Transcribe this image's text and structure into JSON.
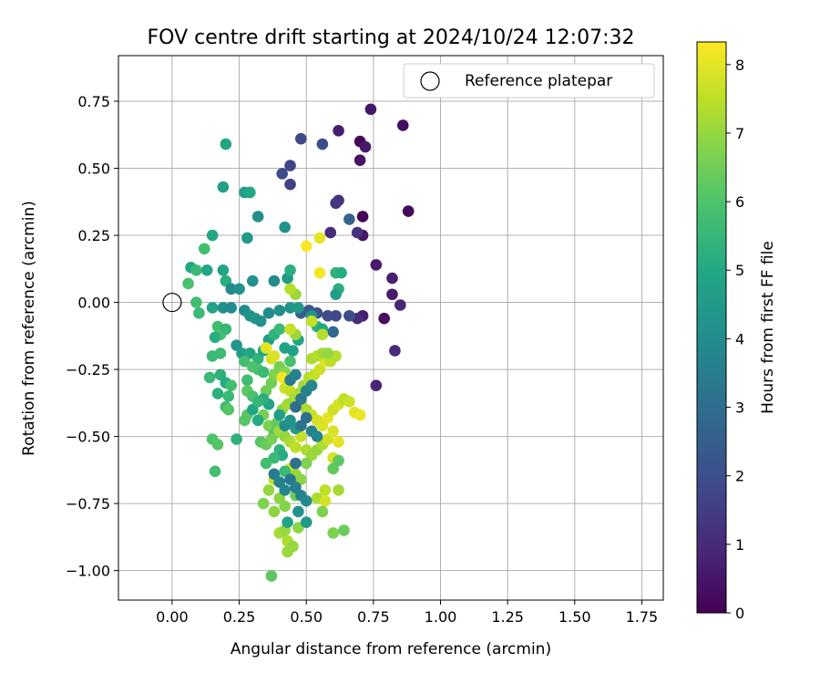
{
  "chart_data": {
    "type": "scatter",
    "title": "FOV centre drift starting at 2024/10/24 12:07:32",
    "xlabel": "Angular distance from reference (arcmin)",
    "ylabel": "Rotation from reference (arcmin)",
    "colorbar_label": "Hours from first FF file",
    "xlim": [
      -0.2,
      1.83
    ],
    "ylim": [
      -1.11,
      0.92
    ],
    "x_ticks": [
      "0.00",
      "0.25",
      "0.50",
      "0.75",
      "1.00",
      "1.25",
      "1.50",
      "1.75"
    ],
    "x_tick_values": [
      0,
      0.25,
      0.5,
      0.75,
      1.0,
      1.25,
      1.5,
      1.75
    ],
    "y_ticks": [
      "0.75",
      "0.50",
      "0.25",
      "0.00",
      "−0.25",
      "−0.50",
      "−0.75",
      "−1.00"
    ],
    "y_tick_values": [
      0.75,
      0.5,
      0.25,
      0,
      -0.25,
      -0.5,
      -0.75,
      -1.0
    ],
    "colorbar_ticks": [
      "0",
      "1",
      "2",
      "3",
      "4",
      "5",
      "6",
      "7",
      "8"
    ],
    "colorbar_tick_values": [
      0,
      1,
      2,
      3,
      4,
      5,
      6,
      7,
      8
    ],
    "colorbar_range": [
      0,
      8.33
    ],
    "colormap": "viridis",
    "grid": true,
    "legend": {
      "position": "top-right",
      "label": "Reference platepar"
    },
    "reference_point": {
      "x": 0,
      "y": 0
    },
    "points": [
      [
        0.74,
        0.72,
        0.5
      ],
      [
        0.86,
        0.66,
        0.3
      ],
      [
        0.62,
        0.64,
        0.7
      ],
      [
        0.48,
        0.61,
        1.8
      ],
      [
        0.56,
        0.59,
        1.9
      ],
      [
        0.7,
        0.6,
        0.2
      ],
      [
        0.72,
        0.58,
        0.6
      ],
      [
        0.7,
        0.53,
        0.4
      ],
      [
        0.44,
        0.51,
        1.7
      ],
      [
        0.41,
        0.48,
        1.9
      ],
      [
        0.44,
        0.44,
        1.6
      ],
      [
        0.62,
        0.38,
        1.2
      ],
      [
        0.61,
        0.37,
        1.3
      ],
      [
        0.88,
        0.34,
        0.2
      ],
      [
        0.71,
        0.32,
        0.1
      ],
      [
        0.66,
        0.31,
        2.6
      ],
      [
        0.71,
        0.25,
        0.5
      ],
      [
        0.59,
        0.26,
        1.0
      ],
      [
        0.69,
        0.26,
        1.2
      ],
      [
        0.76,
        0.14,
        0.6
      ],
      [
        0.82,
        0.09,
        0.7
      ],
      [
        0.82,
        0.03,
        0.6
      ],
      [
        0.85,
        -0.01,
        0.9
      ],
      [
        0.71,
        -0.05,
        0.7
      ],
      [
        0.79,
        -0.06,
        0.3
      ],
      [
        0.69,
        -0.06,
        1.1
      ],
      [
        0.66,
        -0.05,
        2.0
      ],
      [
        0.61,
        -0.05,
        1.8
      ],
      [
        0.58,
        -0.05,
        1.9
      ],
      [
        0.54,
        -0.04,
        2.1
      ],
      [
        0.51,
        -0.03,
        2.3
      ],
      [
        0.48,
        -0.04,
        2.5
      ],
      [
        0.6,
        -0.11,
        2.8
      ],
      [
        0.83,
        -0.18,
        1.0
      ],
      [
        0.76,
        -0.31,
        0.9
      ],
      [
        0.2,
        0.59,
        4.9
      ],
      [
        0.19,
        0.43,
        4.7
      ],
      [
        0.27,
        0.41,
        4.6
      ],
      [
        0.29,
        0.41,
        5.0
      ],
      [
        0.32,
        0.32,
        4.1
      ],
      [
        0.42,
        0.28,
        4.2
      ],
      [
        0.15,
        0.25,
        5.0
      ],
      [
        0.28,
        0.24,
        4.5
      ],
      [
        0.12,
        0.2,
        5.8
      ],
      [
        0.07,
        0.13,
        4.9
      ],
      [
        0.09,
        0.12,
        5.6
      ],
      [
        0.13,
        0.12,
        4.9
      ],
      [
        0.19,
        0.12,
        4.9
      ],
      [
        0.2,
        0.08,
        5.2
      ],
      [
        0.06,
        0.07,
        5.9
      ],
      [
        0.22,
        0.05,
        3.9
      ],
      [
        0.25,
        0.05,
        4.2
      ],
      [
        0.3,
        0.08,
        4.2
      ],
      [
        0.38,
        0.08,
        4.0
      ],
      [
        0.43,
        0.09,
        4.5
      ],
      [
        0.44,
        0.12,
        5.2
      ],
      [
        0.61,
        0.11,
        5.4
      ],
      [
        0.63,
        0.11,
        5.1
      ],
      [
        0.62,
        0.05,
        5.2
      ],
      [
        0.61,
        0.03,
        4.7
      ],
      [
        0.09,
        0.0,
        5.8
      ],
      [
        0.1,
        -0.04,
        5.6
      ],
      [
        0.15,
        -0.02,
        4.8
      ],
      [
        0.19,
        -0.02,
        4.1
      ],
      [
        0.22,
        -0.02,
        4.0
      ],
      [
        0.27,
        -0.03,
        4.0
      ],
      [
        0.29,
        -0.05,
        4.2
      ],
      [
        0.31,
        -0.06,
        4.4
      ],
      [
        0.33,
        -0.07,
        4.1
      ],
      [
        0.36,
        -0.04,
        4.0
      ],
      [
        0.4,
        -0.03,
        4.1
      ],
      [
        0.44,
        -0.02,
        4.3
      ],
      [
        0.47,
        -0.02,
        4.5
      ],
      [
        0.52,
        -0.05,
        4.3
      ],
      [
        0.54,
        -0.09,
        5.3
      ],
      [
        0.56,
        -0.1,
        5.0
      ],
      [
        0.17,
        -0.09,
        5.8
      ],
      [
        0.18,
        -0.12,
        5.9
      ],
      [
        0.2,
        -0.1,
        5.5
      ],
      [
        0.16,
        -0.13,
        5.2
      ],
      [
        0.24,
        -0.16,
        4.3
      ],
      [
        0.26,
        -0.19,
        4.6
      ],
      [
        0.29,
        -0.19,
        4.9
      ],
      [
        0.27,
        -0.22,
        5.8
      ],
      [
        0.32,
        -0.21,
        5.4
      ],
      [
        0.34,
        -0.18,
        5.0
      ],
      [
        0.36,
        -0.14,
        4.6
      ],
      [
        0.38,
        -0.12,
        5.4
      ],
      [
        0.4,
        -0.1,
        5.6
      ],
      [
        0.42,
        -0.17,
        4.9
      ],
      [
        0.45,
        -0.18,
        4.7
      ],
      [
        0.47,
        -0.14,
        4.9
      ],
      [
        0.44,
        -0.22,
        5.9
      ],
      [
        0.15,
        -0.2,
        5.6
      ],
      [
        0.18,
        -0.19,
        5.7
      ],
      [
        0.14,
        -0.28,
        5.6
      ],
      [
        0.18,
        -0.27,
        5.3
      ],
      [
        0.2,
        -0.3,
        5.1
      ],
      [
        0.22,
        -0.31,
        5.8
      ],
      [
        0.17,
        -0.34,
        5.3
      ],
      [
        0.21,
        -0.35,
        5.6
      ],
      [
        0.28,
        -0.29,
        5.7
      ],
      [
        0.3,
        -0.24,
        6.0
      ],
      [
        0.32,
        -0.25,
        5.9
      ],
      [
        0.34,
        -0.26,
        5.6
      ],
      [
        0.2,
        -0.39,
        5.7
      ],
      [
        0.21,
        -0.4,
        6.1
      ],
      [
        0.28,
        -0.33,
        6.2
      ],
      [
        0.3,
        -0.35,
        5.9
      ],
      [
        0.28,
        -0.42,
        6.2
      ],
      [
        0.27,
        -0.44,
        6.1
      ],
      [
        0.24,
        -0.51,
        5.3
      ],
      [
        0.15,
        -0.51,
        6.0
      ],
      [
        0.17,
        -0.53,
        6.1
      ],
      [
        0.16,
        -0.63,
        5.8
      ],
      [
        0.35,
        -0.33,
        6.5
      ],
      [
        0.37,
        -0.3,
        6.5
      ],
      [
        0.38,
        -0.27,
        6.7
      ],
      [
        0.4,
        -0.24,
        6.6
      ],
      [
        0.42,
        -0.26,
        6.8
      ],
      [
        0.34,
        -0.42,
        6.6
      ],
      [
        0.36,
        -0.46,
        6.7
      ],
      [
        0.38,
        -0.49,
        6.1
      ],
      [
        0.33,
        -0.52,
        6.1
      ],
      [
        0.35,
        -0.53,
        6.4
      ],
      [
        0.37,
        -0.51,
        6.6
      ],
      [
        0.39,
        -0.45,
        6.3
      ],
      [
        0.41,
        -0.4,
        6.9
      ],
      [
        0.43,
        -0.38,
        7.2
      ],
      [
        0.45,
        -0.37,
        7.0
      ],
      [
        0.47,
        -0.34,
        7.1
      ],
      [
        0.49,
        -0.31,
        7.2
      ],
      [
        0.51,
        -0.28,
        7.4
      ],
      [
        0.53,
        -0.27,
        7.6
      ],
      [
        0.55,
        -0.25,
        7.7
      ],
      [
        0.57,
        -0.22,
        7.9
      ],
      [
        0.59,
        -0.22,
        7.5
      ],
      [
        0.61,
        -0.2,
        7.4
      ],
      [
        0.52,
        -0.21,
        7.3
      ],
      [
        0.54,
        -0.2,
        7.4
      ],
      [
        0.56,
        -0.19,
        7.2
      ],
      [
        0.58,
        -0.19,
        7.0
      ],
      [
        0.35,
        -0.17,
        8.0
      ],
      [
        0.37,
        -0.21,
        7.8
      ],
      [
        0.38,
        -0.2,
        7.9
      ],
      [
        0.41,
        -0.28,
        8.2
      ],
      [
        0.42,
        -0.32,
        7.7
      ],
      [
        0.44,
        -0.33,
        7.6
      ],
      [
        0.46,
        -0.35,
        7.3
      ],
      [
        0.48,
        -0.38,
        7.1
      ],
      [
        0.5,
        -0.4,
        7.3
      ],
      [
        0.52,
        -0.42,
        7.6
      ],
      [
        0.54,
        -0.44,
        7.8
      ],
      [
        0.56,
        -0.46,
        7.9
      ],
      [
        0.58,
        -0.43,
        8.0
      ],
      [
        0.6,
        -0.4,
        7.7
      ],
      [
        0.62,
        -0.38,
        7.8
      ],
      [
        0.64,
        -0.36,
        7.5
      ],
      [
        0.66,
        -0.37,
        7.7
      ],
      [
        0.68,
        -0.41,
        8.0
      ],
      [
        0.7,
        -0.42,
        8.1
      ],
      [
        0.4,
        -0.48,
        7.2
      ],
      [
        0.42,
        -0.5,
        7.0
      ],
      [
        0.44,
        -0.52,
        7.3
      ],
      [
        0.46,
        -0.54,
        7.5
      ],
      [
        0.48,
        -0.5,
        7.6
      ],
      [
        0.5,
        -0.55,
        7.3
      ],
      [
        0.52,
        -0.57,
        7.1
      ],
      [
        0.54,
        -0.55,
        7.0
      ],
      [
        0.56,
        -0.53,
        7.3
      ],
      [
        0.58,
        -0.51,
        7.7
      ],
      [
        0.6,
        -0.48,
        7.9
      ],
      [
        0.62,
        -0.52,
        8.0
      ],
      [
        0.6,
        -0.58,
        7.8
      ],
      [
        0.44,
        -0.62,
        7.6
      ],
      [
        0.46,
        -0.64,
        7.1
      ],
      [
        0.48,
        -0.66,
        6.9
      ],
      [
        0.5,
        -0.6,
        6.7
      ],
      [
        0.38,
        -0.66,
        7.5
      ],
      [
        0.36,
        -0.7,
        7.0
      ],
      [
        0.34,
        -0.75,
        6.7
      ],
      [
        0.4,
        -0.73,
        6.9
      ],
      [
        0.42,
        -0.76,
        6.8
      ],
      [
        0.46,
        -0.72,
        6.5
      ],
      [
        0.54,
        -0.73,
        7.3
      ],
      [
        0.57,
        -0.74,
        7.8
      ],
      [
        0.57,
        -0.7,
        7.5
      ],
      [
        0.62,
        -0.7,
        7.2
      ],
      [
        0.56,
        -0.78,
        6.7
      ],
      [
        0.6,
        -0.62,
        6.3
      ],
      [
        0.62,
        -0.59,
        6.2
      ],
      [
        0.38,
        -0.78,
        6.9
      ],
      [
        0.4,
        -0.86,
        7.2
      ],
      [
        0.42,
        -0.85,
        7.0
      ],
      [
        0.43,
        -0.89,
        7.3
      ],
      [
        0.45,
        -0.91,
        7.0
      ],
      [
        0.43,
        -0.93,
        7.1
      ],
      [
        0.47,
        -0.84,
        6.9
      ],
      [
        0.6,
        -0.86,
        6.7
      ],
      [
        0.64,
        -0.85,
        6.4
      ],
      [
        0.37,
        -1.02,
        6.2
      ],
      [
        0.5,
        0.21,
        8.3
      ],
      [
        0.55,
        0.24,
        8.0
      ],
      [
        0.55,
        0.11,
        8.2
      ],
      [
        0.52,
        -0.07,
        7.6
      ],
      [
        0.56,
        -0.12,
        7.4
      ],
      [
        0.46,
        -0.12,
        7.1
      ],
      [
        0.44,
        -0.1,
        7.6
      ],
      [
        0.46,
        0.03,
        7.1
      ],
      [
        0.44,
        0.05,
        7.4
      ],
      [
        0.3,
        -0.4,
        4.9
      ],
      [
        0.32,
        -0.44,
        5.1
      ],
      [
        0.4,
        -0.55,
        5.4
      ],
      [
        0.41,
        -0.57,
        5.1
      ],
      [
        0.38,
        -0.58,
        5.6
      ],
      [
        0.35,
        -0.6,
        5.8
      ],
      [
        0.42,
        -0.63,
        5.6
      ],
      [
        0.46,
        -0.47,
        4.5
      ],
      [
        0.48,
        -0.46,
        3.2
      ],
      [
        0.5,
        -0.43,
        3.0
      ],
      [
        0.52,
        -0.48,
        3.6
      ],
      [
        0.54,
        -0.5,
        3.8
      ],
      [
        0.46,
        -0.6,
        3.1
      ],
      [
        0.38,
        -0.64,
        3.4
      ],
      [
        0.4,
        -0.67,
        3.6
      ],
      [
        0.42,
        -0.7,
        3.8
      ],
      [
        0.44,
        -0.66,
        3.3
      ],
      [
        0.46,
        -0.69,
        3.5
      ],
      [
        0.48,
        -0.72,
        3.7
      ],
      [
        0.5,
        -0.74,
        3.9
      ],
      [
        0.47,
        -0.78,
        4.2
      ],
      [
        0.5,
        -0.82,
        4.5
      ],
      [
        0.43,
        -0.82,
        4.8
      ],
      [
        0.46,
        -0.39,
        2.9
      ],
      [
        0.48,
        -0.36,
        3.3
      ],
      [
        0.5,
        -0.33,
        3.6
      ],
      [
        0.52,
        -0.31,
        3.8
      ],
      [
        0.44,
        -0.29,
        3.4
      ],
      [
        0.46,
        -0.27,
        3.7
      ],
      [
        0.42,
        -0.46,
        4.0
      ],
      [
        0.44,
        -0.44,
        4.3
      ],
      [
        0.4,
        -0.42,
        4.6
      ],
      [
        0.36,
        -0.38,
        4.9
      ],
      [
        0.34,
        -0.36,
        5.2
      ],
      [
        0.32,
        -0.37,
        5.5
      ]
    ]
  }
}
